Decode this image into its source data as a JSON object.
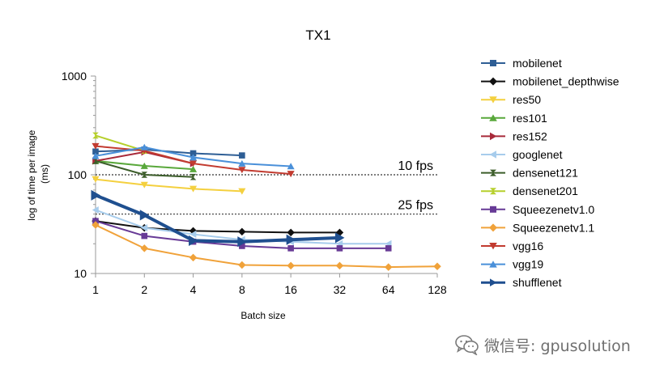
{
  "chart_data": {
    "type": "line",
    "title": "TX1",
    "xlabel": "Batch size",
    "ylabel_lines": [
      "log of time per image",
      "(ms)"
    ],
    "x_scale": "log2",
    "y_scale": "log10",
    "xlim": [
      1,
      128
    ],
    "ylim": [
      10,
      1000
    ],
    "x_ticks": [
      1,
      2,
      4,
      8,
      16,
      32,
      64,
      128
    ],
    "y_ticks": [
      10,
      100,
      1000
    ],
    "reference_lines": [
      {
        "label": "10 fps",
        "value": 100
      },
      {
        "label": "25 fps",
        "value": 40
      }
    ],
    "legend_position": "right",
    "series": [
      {
        "name": "mobilenet",
        "color": "#2e5e95",
        "marker": "square",
        "x": [
          1,
          2,
          4,
          8
        ],
        "y": [
          172,
          180,
          165,
          157
        ]
      },
      {
        "name": "mobilenet_depthwise",
        "color": "#111111",
        "marker": "diamond",
        "x": [
          1,
          2,
          4,
          8,
          16,
          32
        ],
        "y": [
          34,
          29,
          27,
          26.5,
          26,
          26
        ]
      },
      {
        "name": "res50",
        "color": "#f4d03f",
        "marker": "triangle-down",
        "x": [
          1,
          2,
          4,
          8
        ],
        "y": [
          90,
          79,
          72,
          68
        ]
      },
      {
        "name": "res101",
        "color": "#59a83b",
        "marker": "triangle-up",
        "x": [
          1,
          2,
          4
        ],
        "y": [
          138,
          123,
          114
        ]
      },
      {
        "name": "res152",
        "color": "#a82a3a",
        "marker": "triangle-right",
        "x": [
          1,
          2,
          4
        ],
        "y": [
          138,
          170,
          130
        ]
      },
      {
        "name": "googlenet",
        "color": "#a7ccec",
        "marker": "triangle-left",
        "x": [
          1,
          2,
          4,
          8,
          16,
          32,
          64
        ],
        "y": [
          44,
          29,
          25,
          22,
          21,
          20,
          20
        ]
      },
      {
        "name": "densenet121",
        "color": "#3c5d2a",
        "marker": "bowtie",
        "x": [
          1,
          2,
          4
        ],
        "y": [
          138,
          100,
          95
        ]
      },
      {
        "name": "densenet201",
        "color": "#b6cf2b",
        "marker": "bowtie",
        "x": [
          1,
          2
        ],
        "y": [
          250,
          175
        ]
      },
      {
        "name": "Squeezenetv1.0",
        "color": "#673a96",
        "marker": "square",
        "x": [
          1,
          2,
          4,
          8,
          16,
          32,
          64
        ],
        "y": [
          34,
          24,
          21,
          19,
          18,
          18,
          18
        ]
      },
      {
        "name": "Squeezenetv1.1",
        "color": "#f0a23a",
        "marker": "diamond",
        "x": [
          1,
          2,
          4,
          8,
          16,
          32,
          64,
          128
        ],
        "y": [
          31,
          18,
          14.5,
          12.2,
          12,
          12,
          11.6,
          11.8
        ]
      },
      {
        "name": "vgg16",
        "color": "#c23b30",
        "marker": "triangle-down",
        "x": [
          1,
          2,
          4,
          8,
          16
        ],
        "y": [
          195,
          175,
          130,
          112,
          102
        ]
      },
      {
        "name": "vgg19",
        "color": "#4a90d9",
        "marker": "triangle-up",
        "x": [
          1,
          2,
          4,
          8,
          16
        ],
        "y": [
          155,
          190,
          150,
          130,
          122
        ]
      },
      {
        "name": "shufflenet",
        "color": "#1f4f8f",
        "marker": "triangle-right",
        "x": [
          1,
          2,
          4,
          8,
          16,
          32
        ],
        "y": [
          62,
          39,
          21.5,
          21,
          22,
          23
        ]
      }
    ]
  },
  "watermark": {
    "text": "微信号: gpusolution",
    "icon": "wechat-icon"
  }
}
